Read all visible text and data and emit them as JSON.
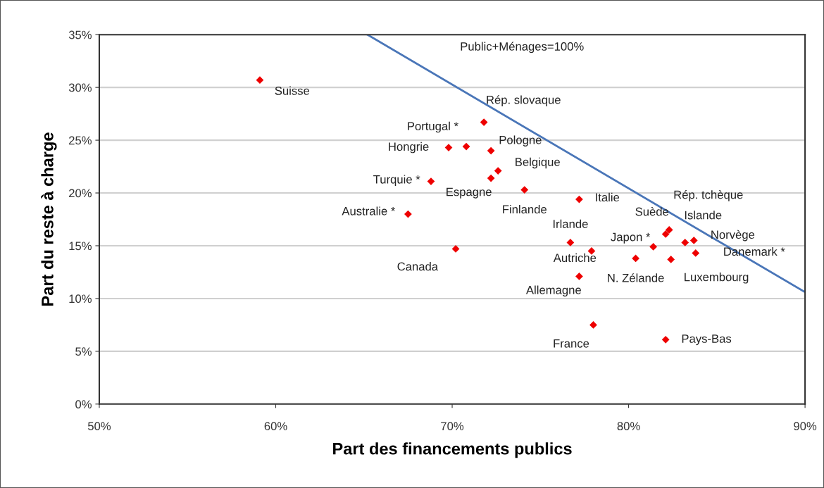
{
  "chart_data": {
    "type": "scatter",
    "xlabel": "Part des financements publics",
    "ylabel": "Part du reste à charge",
    "xlim": [
      50,
      90
    ],
    "xticks": [
      {
        "value": 50,
        "label": "50%"
      },
      {
        "value": 60,
        "label": "60%"
      },
      {
        "value": 70,
        "label": "70%"
      },
      {
        "value": 80,
        "label": "80%"
      },
      {
        "value": 90,
        "label": "90%"
      }
    ],
    "ylim": [
      0,
      35
    ],
    "yticks": [
      {
        "value": 0,
        "label": "0%"
      },
      {
        "value": 5,
        "label": "5%"
      },
      {
        "value": 10,
        "label": "10%"
      },
      {
        "value": 15,
        "label": "15%"
      },
      {
        "value": 20,
        "label": "20%"
      },
      {
        "value": 25,
        "label": "25%"
      },
      {
        "value": 30,
        "label": "30%"
      },
      {
        "value": 35,
        "label": "35%"
      }
    ],
    "grid": "y",
    "legend": false,
    "series": [
      {
        "color": "#ee0000",
        "marker": "diamond",
        "x": [
          59.1,
          70.8,
          71.8,
          69.8,
          72.2,
          72.6,
          72.2,
          68.8,
          74.1,
          77.2,
          67.5,
          70.2,
          76.7,
          77.9,
          77.2,
          81.4,
          80.4,
          82.1,
          82.3,
          83.2,
          83.7,
          83.8,
          82.4,
          78.0,
          82.1
        ],
        "values": [
          30.7,
          24.4,
          26.7,
          24.3,
          24.0,
          22.1,
          21.4,
          21.1,
          20.3,
          19.4,
          18.0,
          14.7,
          15.3,
          14.5,
          12.1,
          14.9,
          13.8,
          16.1,
          16.5,
          15.3,
          15.5,
          14.3,
          13.7,
          7.5,
          6.1
        ]
      },
      {
        "type": "line",
        "name": "Public+Ménages=100%",
        "color": "#4a76b8",
        "line_style": "solid",
        "marker": "none",
        "x": [
          65.2,
          90
        ],
        "values": [
          35,
          10.6
        ]
      }
    ],
    "annotations": [
      {
        "text": "Suisse",
        "x": 59.1,
        "y": 30.7
      },
      "Rép. slovaque",
      {
        "text": "Portugal *",
        "x": 71.8,
        "y": 26.7
      },
      {
        "text": "Hongrie",
        "x": 69.8,
        "y": 24.3
      },
      {
        "text": "Pologne",
        "x": 72.2,
        "y": 24.0
      },
      {
        "text": "Belgique",
        "x": 72.6,
        "y": 22.1
      },
      {
        "text": "Espagne",
        "x": 72.2,
        "y": 21.4
      },
      {
        "text": "Turquie *",
        "x": 68.8,
        "y": 21.1
      },
      {
        "text": "Finlande",
        "x": 74.1,
        "y": 20.3
      },
      {
        "text": "Italie",
        "x": 77.2,
        "y": 19.4
      },
      {
        "text": "Australie *",
        "x": 67.5,
        "y": 18.0
      },
      {
        "text": "Canada",
        "x": 70.2,
        "y": 14.7
      },
      {
        "text": "Irlande",
        "x": 76.7,
        "y": 15.3
      },
      {
        "text": "Autriche",
        "x": 77.9,
        "y": 14.5
      },
      {
        "text": "Allemagne",
        "x": 77.2,
        "y": 12.1
      },
      {
        "text": "Japon *",
        "x": 81.4,
        "y": 14.9
      },
      {
        "text": "N. Zélande",
        "x": 80.4,
        "y": 13.8
      },
      {
        "text": "Suède",
        "x": 82.1,
        "y": 16.1
      },
      {
        "text": "Rép. tchèque",
        "x": 82.3,
        "y": 16.5
      },
      {
        "text": "Islande",
        "x": 83.2,
        "y": 15.3
      },
      {
        "text": "Norvège",
        "x": 83.7,
        "y": 15.5
      },
      "Danemark *",
      {
        "text": "Luxembourg",
        "x": 82.4,
        "y": 13.7
      },
      {
        "text": "France",
        "x": 78.0,
        "y": 7.5
      },
      {
        "text": "Pays-Bas",
        "x": 82.1,
        "y": 6.1
      }
    ]
  }
}
